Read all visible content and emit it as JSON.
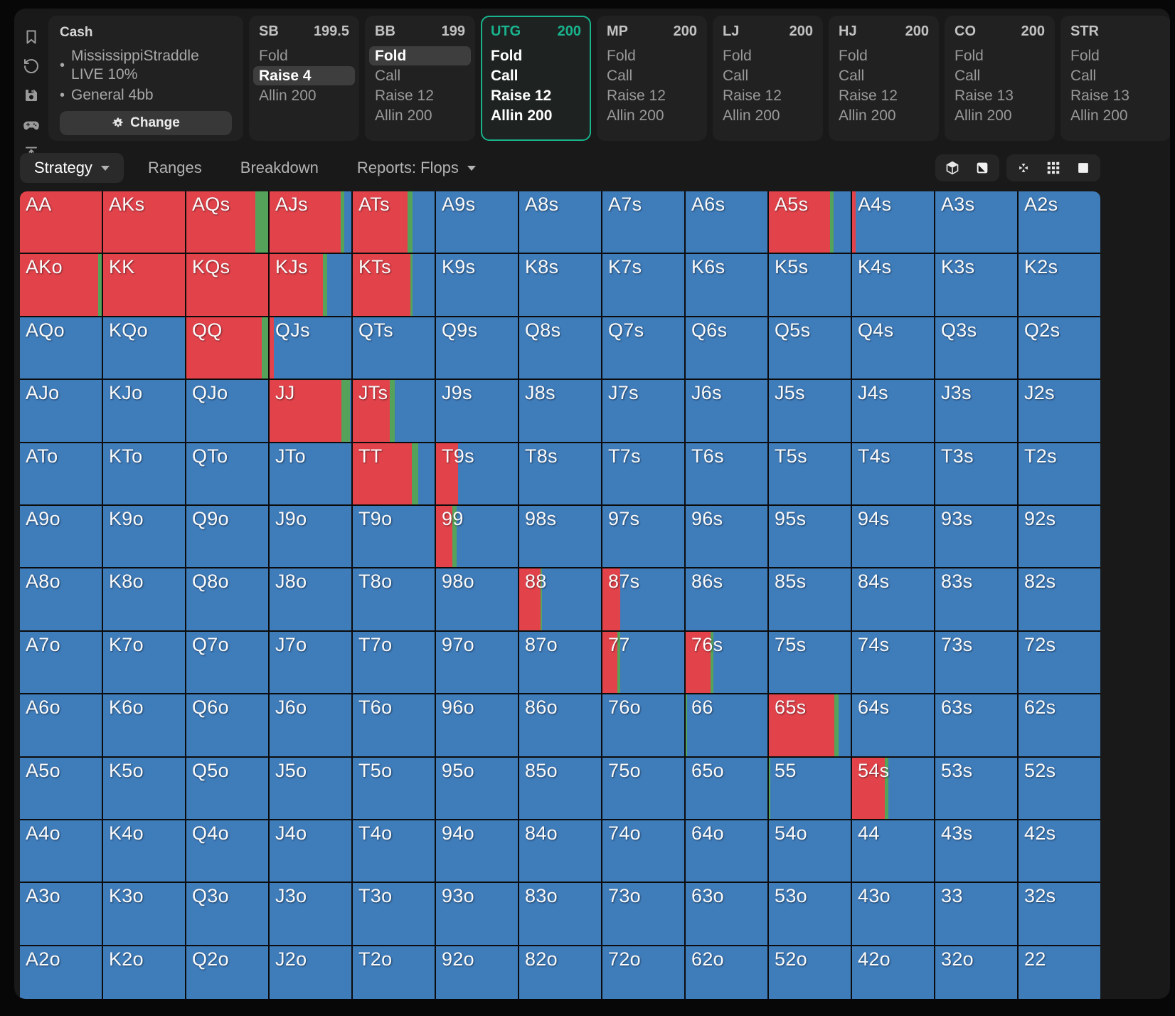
{
  "sidebar": {
    "icons": [
      "bookmark-icon",
      "undo-icon",
      "save-icon",
      "gamepad-icon",
      "vertical-expand-icon"
    ]
  },
  "header": {
    "cash_panel": {
      "title": "Cash",
      "bullet_items": [
        [
          "MississippiStraddle",
          "LIVE 10%"
        ],
        [
          "General 4bb"
        ]
      ],
      "change_label": "Change"
    },
    "positions": [
      {
        "name": "SB",
        "stack": "199.5",
        "selected": false,
        "actions": [
          {
            "label": "Fold",
            "highlight": false
          },
          {
            "label": "Raise 4",
            "highlight": true
          },
          {
            "label": "Allin 200",
            "highlight": false
          }
        ]
      },
      {
        "name": "BB",
        "stack": "199",
        "selected": false,
        "actions": [
          {
            "label": "Fold",
            "highlight": true
          },
          {
            "label": "Call",
            "highlight": false
          },
          {
            "label": "Raise 12",
            "highlight": false
          },
          {
            "label": "Allin 200",
            "highlight": false
          }
        ]
      },
      {
        "name": "UTG",
        "stack": "200",
        "selected": true,
        "actions": [
          {
            "label": "Fold",
            "highlight": false
          },
          {
            "label": "Call",
            "highlight": false
          },
          {
            "label": "Raise 12",
            "highlight": false
          },
          {
            "label": "Allin 200",
            "highlight": false
          }
        ]
      },
      {
        "name": "MP",
        "stack": "200",
        "selected": false,
        "actions": [
          {
            "label": "Fold",
            "highlight": false
          },
          {
            "label": "Call",
            "highlight": false
          },
          {
            "label": "Raise 12",
            "highlight": false
          },
          {
            "label": "Allin 200",
            "highlight": false
          }
        ]
      },
      {
        "name": "LJ",
        "stack": "200",
        "selected": false,
        "actions": [
          {
            "label": "Fold",
            "highlight": false
          },
          {
            "label": "Call",
            "highlight": false
          },
          {
            "label": "Raise 12",
            "highlight": false
          },
          {
            "label": "Allin 200",
            "highlight": false
          }
        ]
      },
      {
        "name": "HJ",
        "stack": "200",
        "selected": false,
        "actions": [
          {
            "label": "Fold",
            "highlight": false
          },
          {
            "label": "Call",
            "highlight": false
          },
          {
            "label": "Raise 12",
            "highlight": false
          },
          {
            "label": "Allin 200",
            "highlight": false
          }
        ]
      },
      {
        "name": "CO",
        "stack": "200",
        "selected": false,
        "actions": [
          {
            "label": "Fold",
            "highlight": false
          },
          {
            "label": "Call",
            "highlight": false
          },
          {
            "label": "Raise 13",
            "highlight": false
          },
          {
            "label": "Allin 200",
            "highlight": false
          }
        ]
      },
      {
        "name": "STR",
        "stack": "",
        "selected": false,
        "actions": [
          {
            "label": "Fold",
            "highlight": false
          },
          {
            "label": "Call",
            "highlight": false
          },
          {
            "label": "Raise 13",
            "highlight": false
          },
          {
            "label": "Allin 200",
            "highlight": false
          }
        ]
      }
    ]
  },
  "tabs": [
    {
      "label": "Strategy",
      "active": true,
      "dropdown": true
    },
    {
      "label": "Ranges",
      "active": false,
      "dropdown": false
    },
    {
      "label": "Breakdown",
      "active": false,
      "dropdown": false
    },
    {
      "label": "Reports: Flops",
      "active": false,
      "dropdown": true
    }
  ],
  "toolbar": {
    "groups": [
      [
        "cube-icon",
        "half-square-icon"
      ],
      [
        "fit-screen-icon",
        "grid-view-icon",
        "square-view-icon"
      ]
    ]
  },
  "colors": {
    "raise": "#e2434b",
    "call": "#55a25b",
    "fold": "#3f7cba",
    "accent": "#19b38e",
    "grid_line": "#0c0c0c"
  },
  "grid": {
    "rows": [
      [
        "AA",
        "AKs",
        "AQs",
        "AJs",
        "ATs",
        "A9s",
        "A8s",
        "A7s",
        "A6s",
        "A5s",
        "A4s",
        "A3s",
        "A2s"
      ],
      [
        "AKo",
        "KK",
        "KQs",
        "KJs",
        "KTs",
        "K9s",
        "K8s",
        "K7s",
        "K6s",
        "K5s",
        "K4s",
        "K3s",
        "K2s"
      ],
      [
        "AQo",
        "KQo",
        "QQ",
        "QJs",
        "QTs",
        "Q9s",
        "Q8s",
        "Q7s",
        "Q6s",
        "Q5s",
        "Q4s",
        "Q3s",
        "Q2s"
      ],
      [
        "AJo",
        "KJo",
        "QJo",
        "JJ",
        "JTs",
        "J9s",
        "J8s",
        "J7s",
        "J6s",
        "J5s",
        "J4s",
        "J3s",
        "J2s"
      ],
      [
        "ATo",
        "KTo",
        "QTo",
        "JTo",
        "TT",
        "T9s",
        "T8s",
        "T7s",
        "T6s",
        "T5s",
        "T4s",
        "T3s",
        "T2s"
      ],
      [
        "A9o",
        "K9o",
        "Q9o",
        "J9o",
        "T9o",
        "99",
        "98s",
        "97s",
        "96s",
        "95s",
        "94s",
        "93s",
        "92s"
      ],
      [
        "A8o",
        "K8o",
        "Q8o",
        "J8o",
        "T8o",
        "98o",
        "88",
        "87s",
        "86s",
        "85s",
        "84s",
        "83s",
        "82s"
      ],
      [
        "A7o",
        "K7o",
        "Q7o",
        "J7o",
        "T7o",
        "97o",
        "87o",
        "77",
        "76s",
        "75s",
        "74s",
        "73s",
        "72s"
      ],
      [
        "A6o",
        "K6o",
        "Q6o",
        "J6o",
        "T6o",
        "96o",
        "86o",
        "76o",
        "66",
        "65s",
        "64s",
        "63s",
        "62s"
      ],
      [
        "A5o",
        "K5o",
        "Q5o",
        "J5o",
        "T5o",
        "95o",
        "85o",
        "75o",
        "65o",
        "55",
        "54s",
        "53s",
        "52s"
      ],
      [
        "A4o",
        "K4o",
        "Q4o",
        "J4o",
        "T4o",
        "94o",
        "84o",
        "74o",
        "64o",
        "54o",
        "44",
        "43s",
        "42s"
      ],
      [
        "A3o",
        "K3o",
        "Q3o",
        "J3o",
        "T3o",
        "93o",
        "83o",
        "73o",
        "63o",
        "53o",
        "43o",
        "33",
        "32s"
      ],
      [
        "A2o",
        "K2o",
        "Q2o",
        "J2o",
        "T2o",
        "92o",
        "82o",
        "72o",
        "62o",
        "52o",
        "42o",
        "32o",
        "22"
      ]
    ],
    "strategies": {
      "AA": [
        100,
        0,
        0
      ],
      "AKs": [
        100,
        0,
        0
      ],
      "AQs": [
        84,
        16,
        0
      ],
      "AJs": [
        87,
        4,
        9
      ],
      "ATs": [
        67,
        6,
        27
      ],
      "A5s": [
        75,
        4,
        21
      ],
      "A4s": [
        4,
        0,
        96
      ],
      "AKo": [
        96,
        4,
        0
      ],
      "KK": [
        100,
        0,
        0
      ],
      "KQs": [
        100,
        0,
        0
      ],
      "KJs": [
        65,
        5,
        30
      ],
      "KTs": [
        70,
        3,
        27
      ],
      "QQ": [
        92,
        8,
        0
      ],
      "QJs": [
        5,
        0,
        95
      ],
      "JJ": [
        88,
        10,
        2
      ],
      "JTs": [
        45,
        6,
        49
      ],
      "TT": [
        72,
        8,
        20
      ],
      "T9s": [
        27,
        0,
        73
      ],
      "99": [
        20,
        5,
        75
      ],
      "88": [
        26,
        2,
        72
      ],
      "87s": [
        22,
        0,
        78
      ],
      "77": [
        18,
        4,
        78
      ],
      "76s": [
        30,
        4,
        66
      ],
      "66": [
        0,
        2,
        98
      ],
      "65s": [
        80,
        5,
        15
      ],
      "55": [
        0,
        2,
        98
      ],
      "54s": [
        40,
        4,
        56
      ]
    },
    "default_strategy": [
      0,
      0,
      100
    ]
  }
}
